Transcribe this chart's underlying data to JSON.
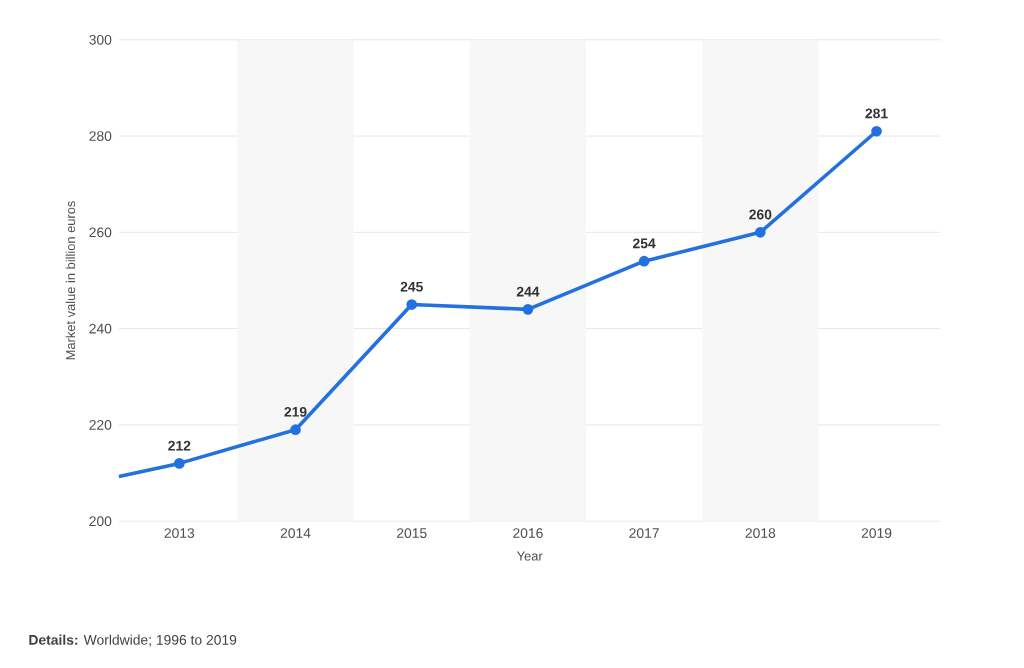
{
  "chart_data": {
    "type": "line",
    "xlabel": "Year",
    "ylabel": "Market value in billion euros",
    "x": [
      2012.48,
      2013,
      2014,
      2015,
      2016,
      2017,
      2018,
      2019
    ],
    "values": [
      209.3,
      212,
      219,
      245,
      244,
      254,
      260,
      281
    ],
    "value_labels": [
      null,
      "212",
      "219",
      "245",
      "244",
      "254",
      "260",
      "281"
    ],
    "color": "#2371de",
    "marker": "circle",
    "line_style": "solid",
    "xlim": [
      2012.48,
      2019.55
    ],
    "xticks": [
      2013,
      2014,
      2015,
      2016,
      2017,
      2018,
      2019
    ],
    "ylim": [
      200,
      300
    ],
    "yticks": [
      200,
      220,
      240,
      260,
      280,
      300
    ],
    "grid": "y",
    "bands": [
      {
        "axis": "x",
        "from": 2013.5,
        "to": 2014.5,
        "color": "#f7f7f7"
      },
      {
        "axis": "x",
        "from": 2015.5,
        "to": 2016.5,
        "color": "#f7f7f7"
      },
      {
        "axis": "x",
        "from": 2017.5,
        "to": 2018.5,
        "color": "#f7f7f7"
      }
    ],
    "annotations": [
      "**Details:** Worldwide; 1996 to 2019"
    ]
  }
}
